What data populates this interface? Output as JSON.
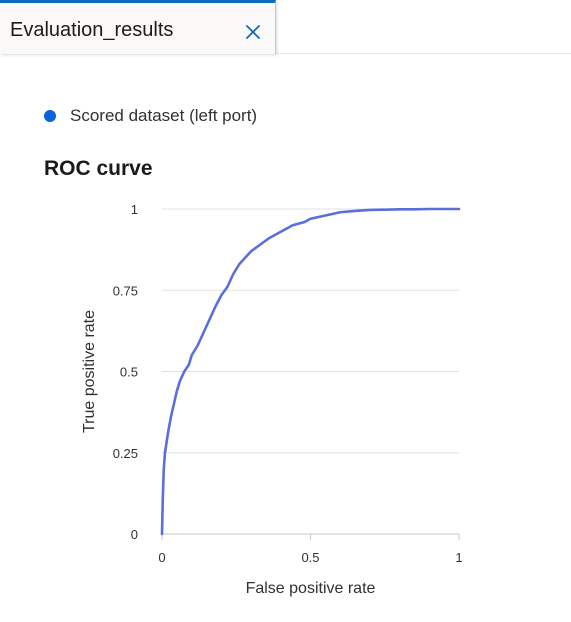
{
  "tab": {
    "title": "Evaluation_results",
    "close_icon": "close-icon"
  },
  "legend": {
    "label": "Scored dataset (left port)",
    "color": "#0b63d9"
  },
  "colors": {
    "accent": "#0f6cbd",
    "curve": "#5a6fdc",
    "grid": "#e1e1e1"
  },
  "chart_data": {
    "type": "line",
    "title": "ROC curve",
    "xlabel": "False positive rate",
    "ylabel": "True positive rate",
    "xlim": [
      0,
      1
    ],
    "ylim": [
      0,
      1
    ],
    "x_ticks": [
      "0",
      "0.5",
      "1"
    ],
    "y_ticks": [
      "0",
      "0.25",
      "0.5",
      "0.75",
      "1"
    ],
    "grid": true,
    "series": [
      {
        "name": "Scored dataset (left port)",
        "x": [
          0,
          0.003,
          0.006,
          0.01,
          0.015,
          0.02,
          0.03,
          0.04,
          0.05,
          0.06,
          0.075,
          0.09,
          0.1,
          0.12,
          0.14,
          0.16,
          0.18,
          0.2,
          0.22,
          0.24,
          0.26,
          0.28,
          0.3,
          0.33,
          0.36,
          0.4,
          0.44,
          0.48,
          0.5,
          0.55,
          0.6,
          0.65,
          0.7,
          0.75,
          0.8,
          0.85,
          0.9,
          0.95,
          1
        ],
        "y": [
          0,
          0.12,
          0.2,
          0.25,
          0.28,
          0.31,
          0.36,
          0.4,
          0.44,
          0.47,
          0.5,
          0.52,
          0.55,
          0.58,
          0.62,
          0.66,
          0.7,
          0.735,
          0.76,
          0.8,
          0.83,
          0.85,
          0.87,
          0.89,
          0.91,
          0.93,
          0.95,
          0.96,
          0.97,
          0.98,
          0.99,
          0.994,
          0.997,
          0.998,
          0.999,
          0.999,
          1,
          1,
          1
        ]
      }
    ]
  }
}
